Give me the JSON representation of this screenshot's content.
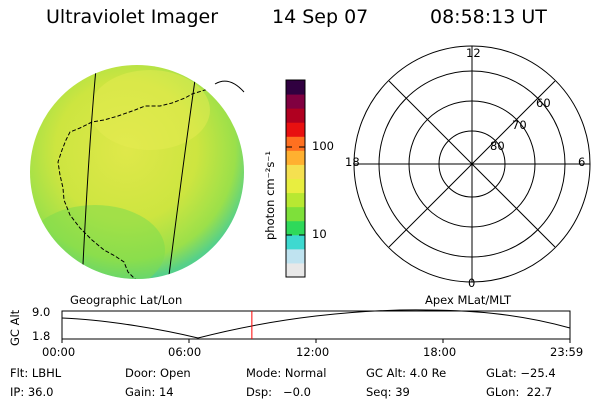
{
  "header": {
    "instrument": "Ultraviolet Imager",
    "date": "14 Sep 07",
    "time": "08:58:13 UT"
  },
  "colorbar": {
    "unit_label": "photon cm⁻²s⁻¹",
    "tick_labels": [
      "100",
      "10"
    ],
    "colors": [
      "#e8e8e8",
      "#bfe3f0",
      "#3ed9d0",
      "#2fd95a",
      "#7ee03a",
      "#b8e832",
      "#e8ee40",
      "#f5e050",
      "#ffb030",
      "#ff7020",
      "#e81010",
      "#b00020",
      "#800040",
      "#300040"
    ]
  },
  "polar_plot": {
    "hour_labels": {
      "top": "12",
      "left": "18",
      "right": "6",
      "bottom": "0"
    },
    "lat_labels": [
      "60",
      "70",
      "80"
    ]
  },
  "plot_labels": {
    "left": "Geographic Lat/Lon",
    "right": "Apex MLat/MLT"
  },
  "altitude_plot": {
    "axis_title": "GC Alt",
    "y_ticks": [
      "9.0",
      "1.8"
    ],
    "x_ticks": [
      "00:00",
      "06:00",
      "12:00",
      "18:00",
      "23:59"
    ],
    "marker_time_hours": 8.97,
    "marker_color": "#ff0000"
  },
  "footer": {
    "row1": {
      "filter": "Flt: LBHL",
      "door": "Door: Open",
      "mode": "Mode: Normal",
      "gc_alt": "GC Alt: 4.0 Re",
      "glat": "GLat: −25.4"
    },
    "row2": {
      "ip": "IP: 36.0",
      "gain": "Gain: 14",
      "dsp": "Dsp:   −0.0",
      "seq": "Seq: 39",
      "glon": "GLon:  22.7"
    }
  }
}
